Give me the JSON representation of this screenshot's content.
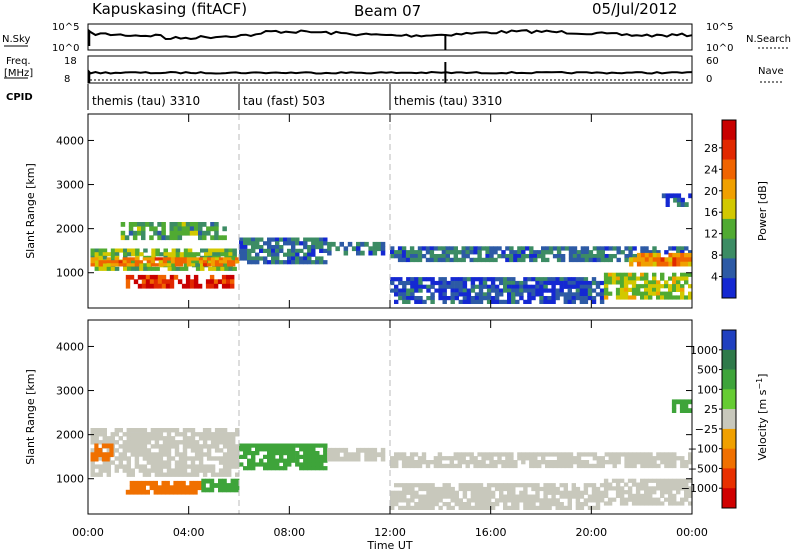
{
  "header": {
    "station": "Kapuskasing (fitACF)",
    "beam": "Beam 07",
    "date": "05/Jul/2012"
  },
  "top_panels": {
    "nsky_label": "N.Sky",
    "nsky_ticks": [
      "10^5",
      "10^0"
    ],
    "nsearch_label": "N.Search",
    "nsearch_ticks": [
      "10^5",
      "10^0"
    ],
    "freq_label_1": "Freq.",
    "freq_label_2": "[MHz]",
    "freq_ticks": [
      "18",
      "8"
    ],
    "nave_label": "Nave",
    "nave_ticks": [
      "60",
      "0"
    ],
    "cpid_label": "CPID"
  },
  "cpid_segments": [
    {
      "label": "themis (tau) 3310",
      "start_hour": 0
    },
    {
      "label": "tau (fast) 503",
      "start_hour": 6
    },
    {
      "label": "themis (tau) 3310",
      "start_hour": 12
    }
  ],
  "x_axis": {
    "label": "Time UT",
    "ticks": [
      "00:00",
      "04:00",
      "08:00",
      "12:00",
      "16:00",
      "20:00",
      "00:00"
    ],
    "range_hours": [
      0,
      24
    ]
  },
  "colors": {
    "power": [
      "#1428d2",
      "#2d5aa5",
      "#3c8c64",
      "#50aa32",
      "#d2c800",
      "#f0a000",
      "#f06400",
      "#e12800",
      "#c80000"
    ],
    "velocity": [
      "#2040c0",
      "#2f7a4a",
      "#3ea43a",
      "#66cc33",
      "#c8c8bc",
      "#f0a000",
      "#f07000",
      "#e83000",
      "#d00000"
    ]
  },
  "chart_data": [
    {
      "type": "heatmap",
      "panel": "power",
      "ylabel": "Slant Range [km]",
      "yticks": [
        "1000",
        "2000",
        "3000",
        "4000"
      ],
      "ylim": [
        200,
        4600
      ],
      "colorbar_label": "Power [dB]",
      "colorbar_ticks": [
        "4",
        "8",
        "12",
        "16",
        "20",
        "24",
        "28"
      ],
      "colorbar_range": [
        0,
        30
      ],
      "regions": [
        {
          "t0": 0.1,
          "t1": 5.9,
          "r0": 1050,
          "r1": 1550,
          "value": 12
        },
        {
          "t0": 1.3,
          "t1": 5.5,
          "r0": 1750,
          "r1": 2150,
          "value": 10
        },
        {
          "t0": 1.5,
          "t1": 5.8,
          "r0": 650,
          "r1": 950,
          "value": 26
        },
        {
          "t0": 0.1,
          "t1": 6.0,
          "r0": 1150,
          "r1": 1350,
          "value": 20
        },
        {
          "t0": 6.0,
          "t1": 9.5,
          "r0": 1200,
          "r1": 1800,
          "value": 6
        },
        {
          "t0": 9.5,
          "t1": 11.8,
          "r0": 1400,
          "r1": 1700,
          "value": 6
        },
        {
          "t0": 12.0,
          "t1": 24.0,
          "r0": 1250,
          "r1": 1600,
          "value": 6
        },
        {
          "t0": 12.0,
          "t1": 20.5,
          "r0": 300,
          "r1": 900,
          "value": 4
        },
        {
          "t0": 20.5,
          "t1": 24.0,
          "r0": 400,
          "r1": 1000,
          "value": 14
        },
        {
          "t0": 21.5,
          "t1": 24.0,
          "r0": 1150,
          "r1": 1450,
          "value": 20
        },
        {
          "t0": 22.8,
          "t1": 24.0,
          "r0": 2500,
          "r1": 2800,
          "value": 5
        }
      ]
    },
    {
      "type": "heatmap",
      "panel": "velocity",
      "ylabel": "Slant Range [km]",
      "yticks": [
        "1000",
        "2000",
        "3000",
        "4000"
      ],
      "ylim": [
        200,
        4600
      ],
      "colorbar_label": "Velocity [m s^-1]",
      "colorbar_ticks": [
        "1000",
        "500",
        "100",
        "25",
        "−25",
        "−100",
        "−500",
        "−1000"
      ],
      "regions": [
        {
          "t0": 0.1,
          "t1": 6.0,
          "r0": 1050,
          "r1": 2150,
          "value": 0
        },
        {
          "t0": 1.5,
          "t1": 4.5,
          "r0": 650,
          "r1": 950,
          "value": -150
        },
        {
          "t0": 0.1,
          "t1": 1.0,
          "r0": 1400,
          "r1": 1800,
          "value": -150
        },
        {
          "t0": 4.5,
          "t1": 6.0,
          "r0": 700,
          "r1": 1000,
          "value": 150
        },
        {
          "t0": 6.0,
          "t1": 9.5,
          "r0": 1200,
          "r1": 1800,
          "value": 150
        },
        {
          "t0": 9.5,
          "t1": 11.8,
          "r0": 1400,
          "r1": 1700,
          "value": 0
        },
        {
          "t0": 12.0,
          "t1": 24.0,
          "r0": 1250,
          "r1": 1600,
          "value": 0
        },
        {
          "t0": 12.0,
          "t1": 20.5,
          "r0": 300,
          "r1": 900,
          "value": 0
        },
        {
          "t0": 20.5,
          "t1": 24.0,
          "r0": 400,
          "r1": 1000,
          "value": 0
        },
        {
          "t0": 23.2,
          "t1": 24.0,
          "r0": 2500,
          "r1": 2800,
          "value": 150
        }
      ]
    }
  ]
}
